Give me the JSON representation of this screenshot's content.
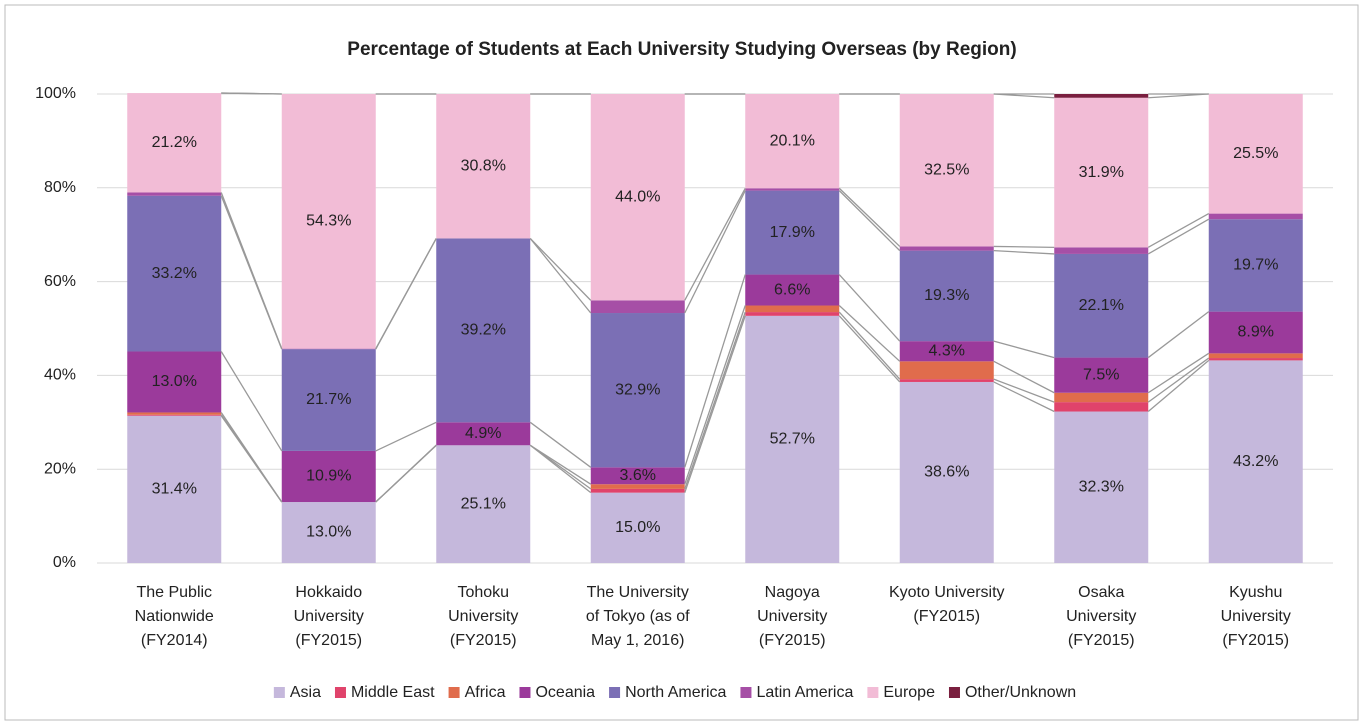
{
  "chart_data": {
    "type": "stacked-bar",
    "title": "Percentage of Students at Each University Studying Overseas (by Region)",
    "categories": [
      "The Public\nNationwide\n(FY2014)",
      "Hokkaido\nUniversity\n(FY2015)",
      "Tohoku\nUniversity\n(FY2015)",
      "The University\nof Tokyo (as of\nMay 1, 2016)",
      "Nagoya\nUniversity\n(FY2015)",
      "Kyoto University\n(FY2015)",
      "Osaka\nUniversity\n(FY2015)",
      "Kyushu\nUniversity\n(FY2015)"
    ],
    "series": [
      {
        "name": "Asia",
        "color": "#c5b8dc",
        "values": [
          31.4,
          13.0,
          25.1,
          15.0,
          52.7,
          38.6,
          32.3,
          43.2
        ],
        "value_labels": [
          "31.4%",
          "13.0%",
          "25.1%",
          "15.0%",
          "52.7%",
          "38.6%",
          "32.3%",
          "43.2%"
        ]
      },
      {
        "name": "Middle East",
        "color": "#e0436b",
        "values": [
          0.2,
          0,
          0,
          0.8,
          0.8,
          0.6,
          2.0,
          0.5
        ]
      },
      {
        "name": "Africa",
        "color": "#e06c4c",
        "values": [
          0.5,
          0,
          0,
          1.0,
          1.4,
          3.8,
          2.0,
          1.0
        ]
      },
      {
        "name": "Oceania",
        "color": "#9b3a9b",
        "values": [
          13.0,
          10.9,
          4.9,
          3.6,
          6.6,
          4.3,
          7.5,
          8.9
        ],
        "value_labels": [
          "13.0%",
          "10.9%",
          "4.9%",
          "3.6%",
          "6.6%",
          "4.3%",
          "7.5%",
          "8.9%"
        ]
      },
      {
        "name": "North America",
        "color": "#7b6fb5",
        "values": [
          33.2,
          21.7,
          39.2,
          32.9,
          17.9,
          19.3,
          22.1,
          19.7
        ],
        "value_labels": [
          "33.2%",
          "21.7%",
          "39.2%",
          "32.9%",
          "17.9%",
          "19.3%",
          "22.1%",
          "19.7%"
        ]
      },
      {
        "name": "Latin America",
        "color": "#a64fa6",
        "values": [
          0.7,
          0.1,
          0,
          2.7,
          0.5,
          0.9,
          1.4,
          1.2
        ]
      },
      {
        "name": "Europe",
        "color": "#f2bcd6",
        "values": [
          21.2,
          54.3,
          30.8,
          44.0,
          20.1,
          32.5,
          31.9,
          25.5
        ],
        "value_labels": [
          "21.2%",
          "54.3%",
          "30.8%",
          "44.0%",
          "20.1%",
          "32.5%",
          "31.9%",
          "25.5%"
        ]
      },
      {
        "name": "Other/Unknown",
        "color": "#7a1f3f",
        "values": [
          0,
          0,
          0,
          0,
          0,
          0,
          0.8,
          0
        ]
      }
    ],
    "ylim": [
      0,
      100
    ],
    "yticks": [
      {
        "value": 0,
        "label": "0%"
      },
      {
        "value": 20,
        "label": "20%"
      },
      {
        "value": 40,
        "label": "40%"
      },
      {
        "value": 60,
        "label": "60%"
      },
      {
        "value": 80,
        "label": "80%"
      },
      {
        "value": 100,
        "label": "100%"
      }
    ],
    "grid": true,
    "legend": "bottom"
  }
}
